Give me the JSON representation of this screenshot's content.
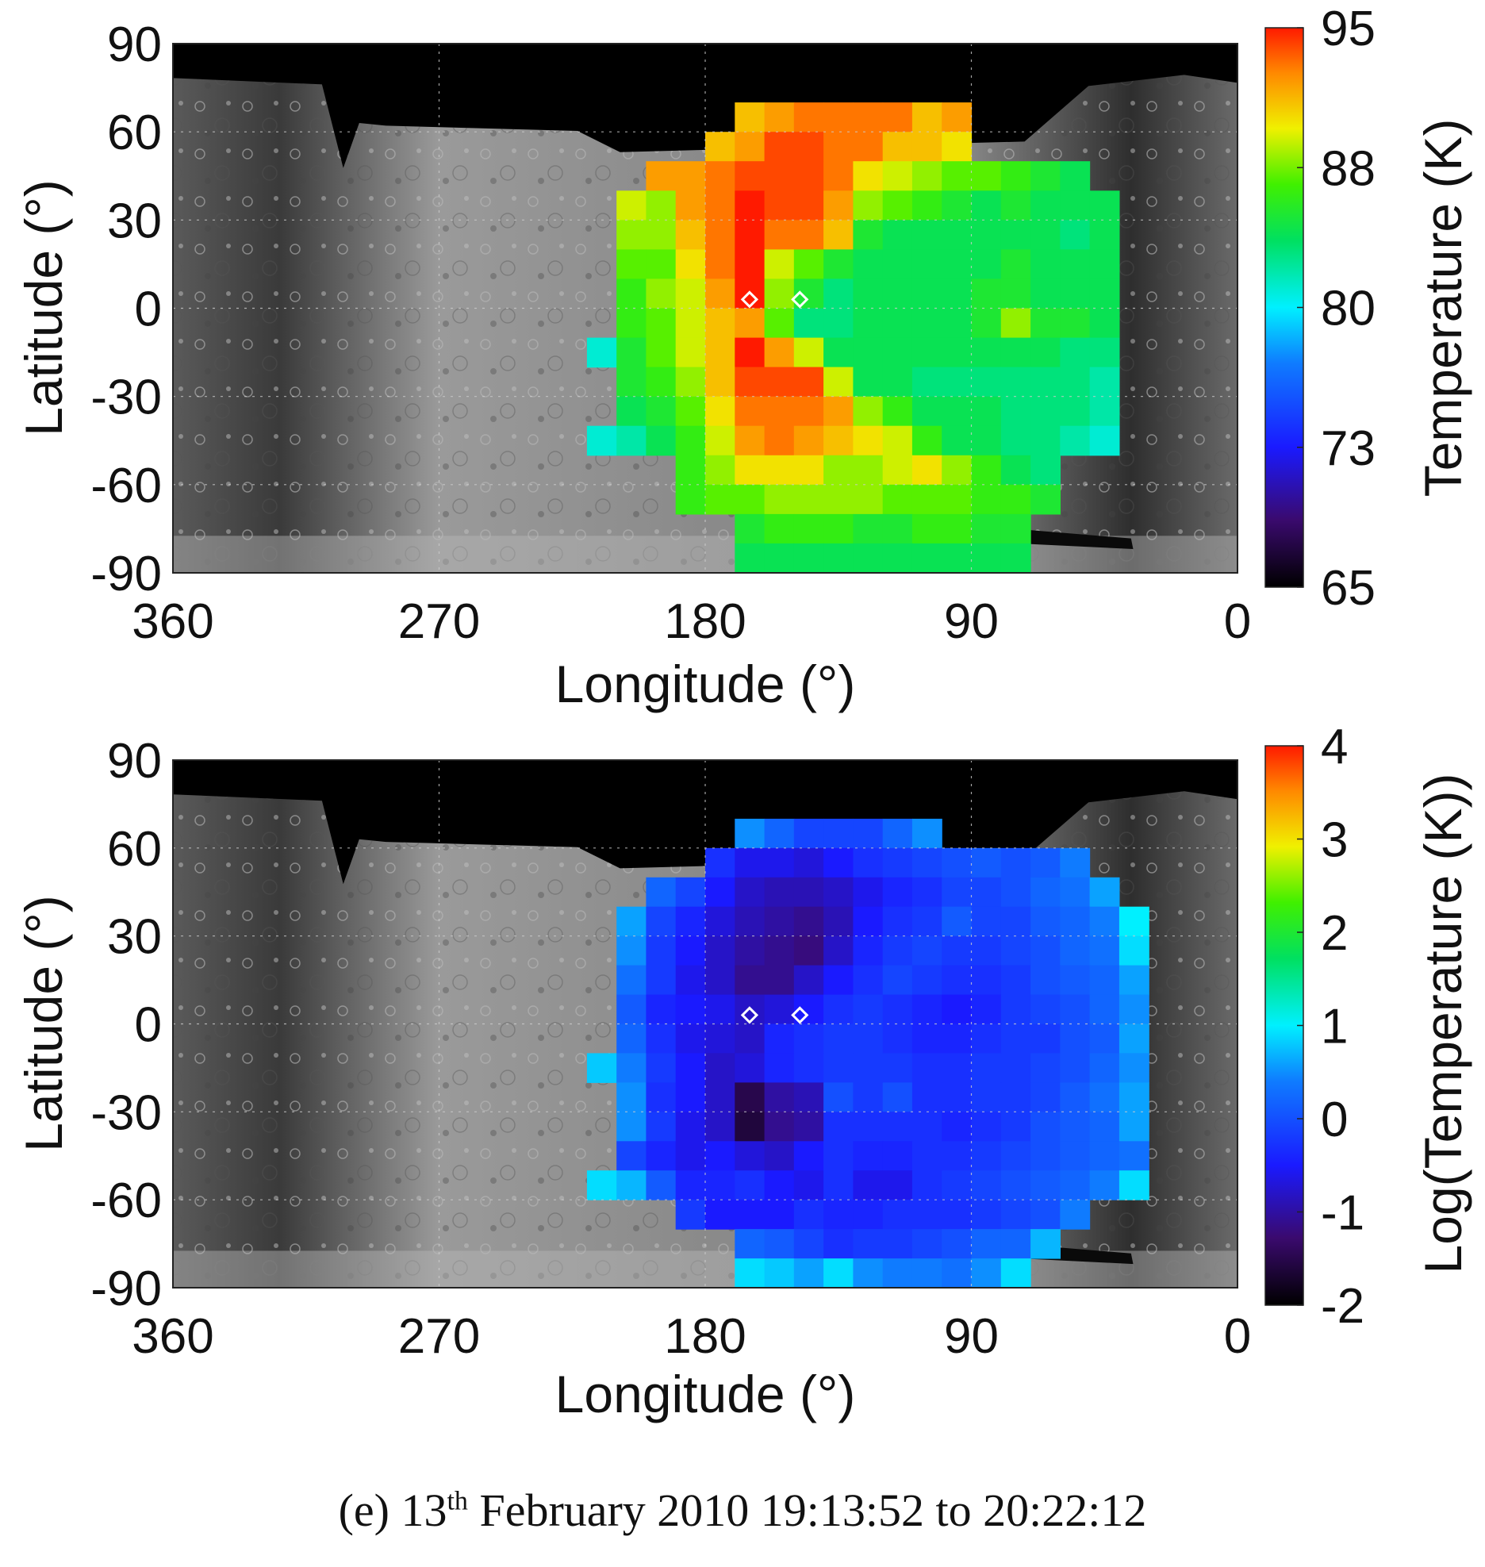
{
  "chart_data": [
    {
      "type": "heatmap",
      "panel": "top",
      "ylabel": "Latitude (°)",
      "xlabel": "Longitude (°)",
      "x_ticks": [
        "360",
        "270",
        "180",
        "90",
        "0"
      ],
      "y_ticks": [
        "90",
        "60",
        "30",
        "0",
        "-30",
        "-60",
        "-90"
      ],
      "xlim": [
        360,
        0
      ],
      "ylim": [
        -90,
        90
      ],
      "grid": true,
      "colorbar": {
        "label": "Temperature (K)",
        "ticks": [
          "95",
          "88",
          "80",
          "73",
          "65"
        ],
        "range": [
          65,
          95
        ]
      },
      "markers": [
        {
          "lon": 165,
          "lat": 3
        },
        {
          "lon": 148,
          "lat": 3
        }
      ],
      "base_map": "grayscale surface image",
      "cell_size_deg": 10,
      "lon_west_edges": [
        260,
        250,
        240,
        230,
        220,
        210,
        200,
        190,
        180,
        170,
        160,
        150,
        140,
        130,
        120,
        110,
        100,
        90,
        80,
        70,
        60,
        50,
        40
      ],
      "lat_rows": [
        {
          "lat_top": 70,
          "values": [
            null,
            null,
            null,
            null,
            null,
            null,
            null,
            null,
            null,
            91,
            92,
            93,
            93,
            93,
            93,
            91,
            92,
            null,
            null,
            null,
            null,
            null,
            null
          ]
        },
        {
          "lat_top": 60,
          "values": [
            null,
            null,
            null,
            null,
            null,
            null,
            null,
            null,
            91,
            92,
            94,
            94,
            93,
            93,
            91,
            91,
            90,
            null,
            null,
            null,
            null,
            null,
            null
          ]
        },
        {
          "lat_top": 50,
          "values": [
            null,
            null,
            null,
            null,
            null,
            null,
            92,
            92,
            93,
            94,
            94,
            94,
            93,
            90,
            89,
            88,
            87,
            87,
            86,
            85,
            84,
            null,
            null
          ]
        },
        {
          "lat_top": 40,
          "values": [
            null,
            null,
            null,
            null,
            null,
            89,
            88,
            92,
            93,
            95,
            94,
            94,
            92,
            88,
            87,
            86,
            85,
            84,
            85,
            84,
            84,
            84,
            null
          ]
        },
        {
          "lat_top": 30,
          "values": [
            null,
            null,
            null,
            null,
            null,
            88,
            88,
            91,
            93,
            95,
            93,
            93,
            91,
            85,
            84,
            84,
            84,
            84,
            84,
            84,
            83,
            84,
            null
          ]
        },
        {
          "lat_top": 20,
          "values": [
            null,
            null,
            null,
            null,
            null,
            87,
            87,
            90,
            93,
            95,
            89,
            87,
            85,
            84,
            84,
            84,
            84,
            84,
            85,
            84,
            84,
            84,
            null
          ]
        },
        {
          "lat_top": 10,
          "values": [
            null,
            null,
            null,
            null,
            null,
            86,
            88,
            89,
            92,
            95,
            88,
            85,
            83,
            84,
            84,
            84,
            84,
            85,
            85,
            84,
            84,
            84,
            null
          ]
        },
        {
          "lat_top": 0,
          "values": [
            null,
            null,
            null,
            null,
            null,
            86,
            87,
            89,
            91,
            92,
            87,
            83,
            83,
            84,
            84,
            84,
            84,
            85,
            88,
            85,
            85,
            84,
            null
          ]
        },
        {
          "lat_top": -10,
          "values": [
            null,
            null,
            null,
            null,
            81,
            85,
            87,
            89,
            91,
            95,
            92,
            89,
            84,
            84,
            84,
            84,
            84,
            84,
            84,
            84,
            83,
            83,
            null
          ]
        },
        {
          "lat_top": -20,
          "values": [
            null,
            null,
            null,
            null,
            null,
            85,
            86,
            88,
            91,
            94,
            94,
            94,
            89,
            84,
            84,
            83,
            83,
            83,
            83,
            83,
            83,
            82,
            null
          ]
        },
        {
          "lat_top": -30,
          "values": [
            null,
            null,
            null,
            null,
            null,
            84,
            85,
            87,
            90,
            93,
            93,
            93,
            92,
            88,
            86,
            84,
            84,
            84,
            83,
            83,
            83,
            82,
            null
          ]
        },
        {
          "lat_top": -40,
          "values": [
            null,
            null,
            null,
            null,
            81,
            82,
            84,
            86,
            89,
            92,
            93,
            92,
            91,
            90,
            89,
            86,
            84,
            84,
            83,
            83,
            82,
            81,
            null
          ]
        },
        {
          "lat_top": -50,
          "values": [
            null,
            null,
            null,
            null,
            null,
            null,
            null,
            86,
            88,
            90,
            90,
            90,
            88,
            88,
            89,
            90,
            88,
            86,
            84,
            83,
            null,
            null,
            null
          ]
        },
        {
          "lat_top": -60,
          "values": [
            null,
            null,
            null,
            null,
            null,
            null,
            null,
            86,
            87,
            87,
            88,
            88,
            88,
            88,
            87,
            87,
            87,
            86,
            86,
            85,
            null,
            null,
            null
          ]
        },
        {
          "lat_top": -70,
          "values": [
            null,
            null,
            null,
            null,
            null,
            null,
            null,
            null,
            null,
            85,
            86,
            86,
            86,
            85,
            85,
            86,
            86,
            85,
            85,
            null,
            null,
            null,
            null
          ]
        },
        {
          "lat_top": -80,
          "values": [
            null,
            null,
            null,
            null,
            null,
            null,
            null,
            null,
            null,
            84,
            84,
            84,
            84,
            84,
            84,
            84,
            84,
            84,
            84,
            null,
            null,
            null,
            null
          ]
        }
      ]
    },
    {
      "type": "heatmap",
      "panel": "bottom",
      "ylabel": "Latitude (°)",
      "xlabel": "Longitude (°)",
      "x_ticks": [
        "360",
        "270",
        "180",
        "90",
        "0"
      ],
      "y_ticks": [
        "90",
        "60",
        "30",
        "0",
        "-30",
        "-60",
        "-90"
      ],
      "xlim": [
        360,
        0
      ],
      "ylim": [
        -90,
        90
      ],
      "grid": true,
      "colorbar": {
        "label": "Log(Temperature (K))",
        "ticks": [
          "4",
          "3",
          "2",
          "1",
          "0",
          "-1",
          "-2"
        ],
        "range": [
          -2,
          4
        ]
      },
      "markers": [
        {
          "lon": 165,
          "lat": 3
        },
        {
          "lon": 148,
          "lat": 3
        }
      ],
      "base_map": "grayscale surface image",
      "cell_size_deg": 10,
      "lon_west_edges": [
        260,
        250,
        240,
        230,
        220,
        210,
        200,
        190,
        180,
        170,
        160,
        150,
        140,
        130,
        120,
        110,
        100,
        90,
        80,
        70,
        60,
        50,
        40
      ],
      "lat_rows": [
        {
          "lat_top": 70,
          "values": [
            null,
            null,
            null,
            null,
            null,
            null,
            null,
            null,
            null,
            0.5,
            0.2,
            -0.1,
            -0.1,
            -0.1,
            0.2,
            0.5,
            null,
            null,
            null,
            null,
            null,
            null,
            null
          ]
        },
        {
          "lat_top": 60,
          "values": [
            null,
            null,
            null,
            null,
            null,
            null,
            null,
            null,
            -0.3,
            -0.6,
            -0.6,
            -0.7,
            -0.5,
            -0.3,
            -0.2,
            -0.1,
            0.0,
            0.1,
            0.0,
            0.1,
            0.4,
            null,
            null
          ]
        },
        {
          "lat_top": 50,
          "values": [
            null,
            null,
            null,
            null,
            null,
            null,
            0.2,
            -0.1,
            -0.5,
            -0.8,
            -0.9,
            -0.9,
            -0.8,
            -0.6,
            -0.4,
            -0.3,
            -0.1,
            -0.1,
            0.0,
            0.2,
            0.3,
            0.6,
            null
          ]
        },
        {
          "lat_top": 40,
          "values": [
            null,
            null,
            null,
            null,
            null,
            0.6,
            -0.1,
            -0.4,
            -0.7,
            -0.9,
            -1.0,
            -1.1,
            -0.9,
            -0.5,
            -0.3,
            -0.2,
            0.1,
            -0.1,
            -0.1,
            0.1,
            0.2,
            0.4,
            1.0
          ]
        },
        {
          "lat_top": 30,
          "values": [
            null,
            null,
            null,
            null,
            null,
            0.5,
            -0.2,
            -0.5,
            -0.8,
            -1.0,
            -1.1,
            -1.2,
            -0.8,
            -0.4,
            -0.2,
            -0.1,
            -0.2,
            -0.2,
            -0.1,
            0.0,
            0.2,
            0.3,
            0.9
          ]
        },
        {
          "lat_top": 20,
          "values": [
            null,
            null,
            null,
            null,
            null,
            0.3,
            -0.2,
            -0.6,
            -0.8,
            -1.1,
            -1.1,
            -0.8,
            -0.5,
            -0.3,
            -0.1,
            -0.2,
            -0.3,
            -0.3,
            -0.2,
            0.0,
            0.1,
            0.2,
            0.6
          ]
        },
        {
          "lat_top": 10,
          "values": [
            null,
            null,
            null,
            null,
            null,
            0.1,
            -0.4,
            -0.5,
            -0.6,
            -0.8,
            -0.7,
            -0.5,
            -0.3,
            -0.2,
            -0.3,
            -0.4,
            -0.5,
            -0.4,
            -0.2,
            -0.1,
            0.0,
            0.2,
            0.5
          ]
        },
        {
          "lat_top": 0,
          "values": [
            null,
            null,
            null,
            null,
            null,
            0.2,
            -0.3,
            -0.6,
            -0.7,
            -0.8,
            -0.4,
            -0.3,
            -0.2,
            -0.2,
            -0.3,
            -0.4,
            -0.4,
            -0.3,
            -0.2,
            -0.2,
            0.0,
            0.1,
            0.6
          ]
        },
        {
          "lat_top": -10,
          "values": [
            null,
            null,
            null,
            null,
            0.8,
            0.4,
            -0.2,
            -0.5,
            -0.8,
            -0.7,
            -0.4,
            -0.3,
            -0.2,
            -0.2,
            -0.2,
            -0.3,
            -0.3,
            -0.2,
            -0.2,
            -0.1,
            0.0,
            0.2,
            0.5
          ]
        },
        {
          "lat_top": -20,
          "values": [
            null,
            null,
            null,
            null,
            null,
            0.5,
            -0.3,
            -0.5,
            -0.8,
            -1.5,
            -1.0,
            -0.9,
            0.0,
            -0.2,
            0.0,
            -0.3,
            -0.3,
            -0.2,
            -0.2,
            -0.1,
            0.1,
            0.3,
            0.6
          ]
        },
        {
          "lat_top": -30,
          "values": [
            null,
            null,
            null,
            null,
            null,
            0.5,
            -0.2,
            -0.6,
            -0.8,
            -1.6,
            -1.1,
            -1.0,
            -0.3,
            -0.3,
            -0.3,
            -0.3,
            -0.4,
            -0.3,
            -0.2,
            0.0,
            0.1,
            0.2,
            0.6
          ]
        },
        {
          "lat_top": -40,
          "values": [
            null,
            null,
            null,
            null,
            null,
            -0.1,
            -0.4,
            -0.6,
            -0.5,
            -0.7,
            -0.8,
            -0.5,
            -0.3,
            -0.4,
            -0.4,
            -0.3,
            -0.3,
            -0.2,
            -0.1,
            0.0,
            0.1,
            0.2,
            0.3
          ]
        },
        {
          "lat_top": -50,
          "values": [
            null,
            null,
            null,
            null,
            0.9,
            0.7,
            0.1,
            -0.4,
            -0.4,
            -0.3,
            -0.5,
            -0.6,
            -0.3,
            -0.6,
            -0.6,
            -0.3,
            -0.2,
            -0.1,
            0.0,
            0.1,
            0.2,
            0.4,
            0.9
          ]
        },
        {
          "lat_top": -60,
          "values": [
            null,
            null,
            null,
            null,
            null,
            null,
            null,
            -0.2,
            -0.5,
            -0.5,
            -0.5,
            -0.3,
            -0.4,
            -0.4,
            -0.3,
            -0.3,
            -0.3,
            -0.2,
            -0.1,
            0.0,
            0.4,
            null,
            null
          ]
        },
        {
          "lat_top": -70,
          "values": [
            null,
            null,
            null,
            null,
            null,
            null,
            null,
            null,
            null,
            0.2,
            0.1,
            -0.1,
            -0.3,
            -0.2,
            -0.2,
            -0.1,
            0.0,
            0.2,
            0.2,
            0.7,
            null,
            null,
            null
          ]
        },
        {
          "lat_top": -80,
          "values": [
            null,
            null,
            null,
            null,
            null,
            null,
            null,
            null,
            null,
            0.9,
            0.8,
            0.6,
            0.9,
            0.5,
            0.4,
            0.4,
            0.3,
            0.5,
            0.9,
            null,
            null,
            null,
            null
          ]
        }
      ]
    }
  ],
  "caption": {
    "prefix": "(e) 13",
    "superscript": "th",
    "suffix": " February 2010 19:13:52 to 20:22:12"
  }
}
